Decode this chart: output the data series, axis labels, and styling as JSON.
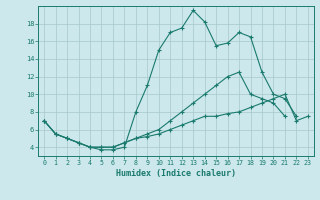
{
  "xlabel": "Humidex (Indice chaleur)",
  "bg_color": "#cce8ec",
  "line_color": "#1a7a6e",
  "grid_color": "#a8c8cc",
  "xlim": [
    -0.5,
    23.5
  ],
  "ylim": [
    3,
    20
  ],
  "yticks": [
    4,
    6,
    8,
    10,
    12,
    14,
    16,
    18
  ],
  "xticks": [
    0,
    1,
    2,
    3,
    4,
    5,
    6,
    7,
    8,
    9,
    10,
    11,
    12,
    13,
    14,
    15,
    16,
    17,
    18,
    19,
    20,
    21,
    22,
    23
  ],
  "line1_x": [
    0,
    1,
    2,
    3,
    4,
    5,
    6,
    7,
    8,
    9,
    10,
    11,
    12,
    13,
    14,
    15,
    16,
    17,
    18,
    19,
    20,
    21,
    22,
    23
  ],
  "line1_y": [
    7,
    5.5,
    5,
    4.5,
    4,
    3.7,
    3.7,
    4,
    8,
    11,
    15,
    17,
    17.5,
    19.5,
    18.2,
    15.5,
    15.8,
    17,
    16.5,
    12.5,
    10,
    9.5,
    7.5,
    null
  ],
  "line2_x": [
    0,
    1,
    2,
    3,
    4,
    5,
    6,
    7,
    8,
    9,
    10,
    11,
    12,
    13,
    14,
    15,
    16,
    17,
    18,
    19,
    20,
    21,
    22,
    23
  ],
  "line2_y": [
    7,
    5.5,
    5,
    4.5,
    4,
    4,
    4,
    4.5,
    5,
    5.5,
    6,
    7,
    8,
    9,
    10,
    11,
    12,
    12.5,
    10,
    9.5,
    9,
    7.5,
    null,
    null
  ],
  "line3_x": [
    0,
    1,
    2,
    3,
    4,
    5,
    6,
    7,
    8,
    9,
    10,
    11,
    12,
    13,
    14,
    15,
    16,
    17,
    18,
    19,
    20,
    21,
    22,
    23
  ],
  "line3_y": [
    7,
    5.5,
    5,
    4.5,
    4,
    4,
    4,
    4.5,
    5,
    5.2,
    5.5,
    6,
    6.5,
    7,
    7.5,
    7.5,
    7.8,
    8,
    8.5,
    9,
    9.5,
    10,
    7,
    7.5
  ]
}
